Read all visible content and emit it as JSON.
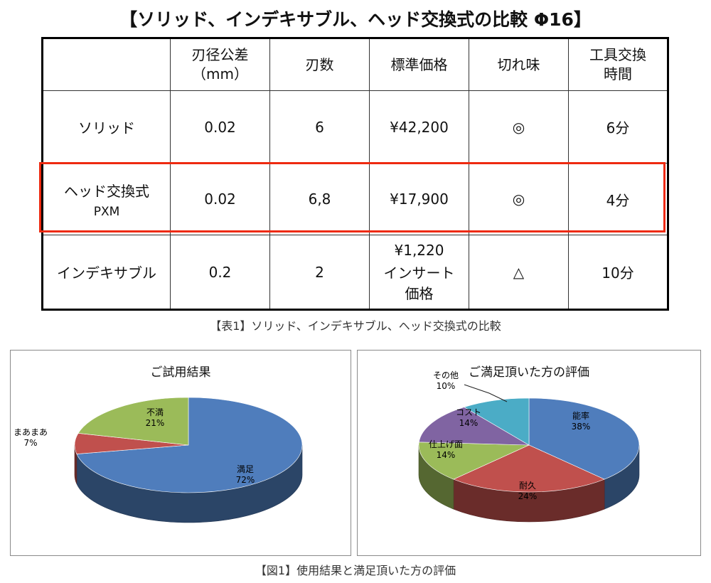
{
  "title": "【ソリッド、インデキサブル、ヘッド交換式の比較 Φ16】",
  "table": {
    "headers": [
      {
        "l1": "",
        "l2": ""
      },
      {
        "l1": "刃径公差",
        "l2": "（mm）"
      },
      {
        "l1": "刃数",
        "l2": ""
      },
      {
        "l1": "標準価格",
        "l2": ""
      },
      {
        "l1": "切れ味",
        "l2": ""
      },
      {
        "l1": "工具交換",
        "l2": "時間"
      }
    ],
    "rows": [
      {
        "name": "ソリッド",
        "name2": "",
        "tol": "0.02",
        "flutes": "6",
        "price": "¥42,200",
        "price_note": "",
        "sharp": "◎",
        "time": "6分"
      },
      {
        "name": "ヘッド交換式",
        "name2": "PXM",
        "tol": "0.02",
        "flutes": "6,8",
        "price": "¥17,900",
        "price_note": "",
        "sharp": "◎",
        "time": "4分"
      },
      {
        "name": "インデキサブル",
        "name2": "",
        "tol": "0.2",
        "flutes": "2",
        "price": "¥1,220",
        "price_note": "インサート価格",
        "sharp": "△",
        "time": "10分"
      }
    ],
    "highlight_color": "#ee2a10"
  },
  "table_caption": "【表1】ソリッド、インデキサブル、ヘッド交換式の比較",
  "figure_caption": "【図1】使用結果と満足頂いた方の評価",
  "chart_data": [
    {
      "type": "pie",
      "title": "ご試用結果",
      "categories": [
        "満足",
        "まあまあ",
        "不満"
      ],
      "values": [
        72,
        7,
        21
      ],
      "labels": [
        "72%",
        "7%",
        "21%"
      ],
      "colors": [
        "#4f7dbc",
        "#c0504d",
        "#9bbb59"
      ],
      "style": "3d"
    },
    {
      "type": "pie",
      "title": "ご満足頂いた方の評価",
      "categories": [
        "能率",
        "耐久",
        "仕上げ面",
        "コスト",
        "その他"
      ],
      "values": [
        38,
        24,
        14,
        14,
        10
      ],
      "labels": [
        "38%",
        "24%",
        "14%",
        "14%",
        "10%"
      ],
      "colors": [
        "#4f7dbc",
        "#c0504d",
        "#9bbb59",
        "#8064a2",
        "#4bacc6"
      ],
      "style": "3d"
    }
  ]
}
